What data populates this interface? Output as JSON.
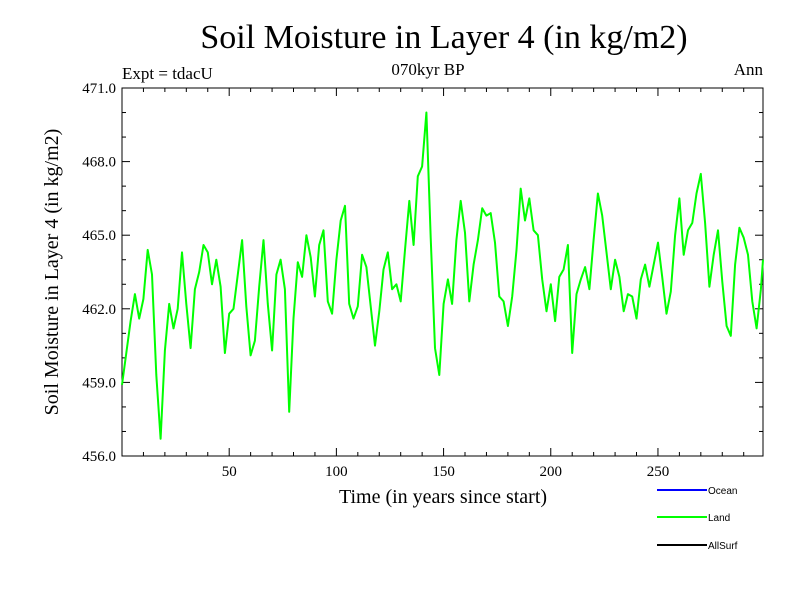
{
  "chart_data": {
    "type": "line",
    "title": "Soil Moisture in Layer 4 (in kg/m2)",
    "subtitle": "070kyr BP",
    "left_note": "Expt = tdacU",
    "right_note": "Ann",
    "xlabel": "Time (in years since start)",
    "ylabel": "Soil Moisture in Layer 4 (in kg/m2)",
    "xlim": [
      0,
      299
    ],
    "ylim": [
      456.0,
      471.0
    ],
    "x_ticks": [
      50,
      100,
      150,
      200,
      250
    ],
    "x_tick_labels": [
      "50",
      "100",
      "150",
      "200",
      "250"
    ],
    "y_ticks": [
      456.0,
      459.0,
      462.0,
      465.0,
      468.0,
      471.0
    ],
    "y_tick_labels": [
      "456.0",
      "459.0",
      "462.0",
      "465.0",
      "468.0",
      "471.0"
    ],
    "grid": false,
    "legend_position": "bottom-right",
    "legend": [
      {
        "name": "Ocean",
        "color": "#0000ff"
      },
      {
        "name": "Land",
        "color": "#00ff00"
      },
      {
        "name": "AllSurf",
        "color": "#000000"
      }
    ],
    "series": [
      {
        "name": "Land",
        "color": "#00ff00",
        "x": [
          0,
          2,
          4,
          6,
          8,
          10,
          12,
          14,
          16,
          18,
          20,
          22,
          24,
          26,
          28,
          30,
          32,
          34,
          36,
          38,
          40,
          42,
          44,
          46,
          48,
          50,
          52,
          54,
          56,
          58,
          60,
          62,
          64,
          66,
          68,
          70,
          72,
          74,
          76,
          78,
          80,
          82,
          84,
          86,
          88,
          90,
          92,
          94,
          96,
          98,
          100,
          102,
          104,
          106,
          108,
          110,
          112,
          114,
          116,
          118,
          120,
          122,
          124,
          126,
          128,
          130,
          132,
          134,
          136,
          138,
          140,
          142,
          144,
          146,
          148,
          150,
          152,
          154,
          156,
          158,
          160,
          162,
          164,
          166,
          168,
          170,
          172,
          174,
          176,
          178,
          180,
          182,
          184,
          186,
          188,
          190,
          192,
          194,
          196,
          198,
          200,
          202,
          204,
          206,
          208,
          210,
          212,
          214,
          216,
          218,
          220,
          222,
          224,
          226,
          228,
          230,
          232,
          234,
          236,
          238,
          240,
          242,
          244,
          246,
          248,
          250,
          252,
          254,
          256,
          258,
          260,
          262,
          264,
          266,
          268,
          270,
          272,
          274,
          276,
          278,
          280,
          282,
          284,
          286,
          288,
          290,
          292,
          294,
          296,
          298,
          299
        ],
        "values": [
          458.9,
          460.2,
          461.5,
          462.6,
          461.6,
          462.4,
          464.4,
          463.4,
          459.3,
          456.7,
          460.3,
          462.2,
          461.2,
          462.0,
          464.3,
          462.2,
          460.4,
          462.8,
          463.5,
          464.6,
          464.3,
          463.0,
          464.0,
          462.9,
          460.2,
          461.8,
          462.0,
          463.4,
          464.8,
          462.1,
          460.1,
          460.7,
          462.9,
          464.8,
          462.2,
          460.3,
          463.4,
          464.0,
          462.8,
          457.8,
          461.6,
          463.9,
          463.3,
          465.0,
          464.1,
          462.5,
          464.6,
          465.2,
          462.3,
          461.8,
          464.0,
          465.6,
          466.2,
          462.2,
          461.6,
          462.1,
          464.2,
          463.7,
          462.1,
          460.5,
          461.9,
          463.6,
          464.3,
          462.8,
          463.0,
          462.3,
          464.4,
          466.4,
          464.6,
          467.4,
          467.8,
          470.0,
          464.9,
          460.4,
          459.3,
          462.2,
          463.2,
          462.2,
          464.8,
          466.4,
          465.1,
          462.3,
          463.8,
          464.8,
          466.1,
          465.8,
          465.9,
          464.7,
          462.5,
          462.3,
          461.3,
          462.5,
          464.4,
          466.9,
          465.6,
          466.5,
          465.2,
          465.0,
          463.2,
          461.9,
          463.0,
          461.5,
          463.3,
          463.6,
          464.6,
          460.2,
          462.6,
          463.2,
          463.7,
          462.8,
          464.8,
          466.7,
          465.8,
          464.3,
          462.8,
          464.0,
          463.3,
          461.9,
          462.6,
          462.5,
          461.6,
          463.2,
          463.8,
          462.9,
          463.8,
          464.7,
          463.3,
          461.8,
          462.7,
          465.0,
          466.5,
          464.2,
          465.2,
          465.5,
          466.7,
          467.5,
          465.5,
          462.9,
          464.2,
          465.2,
          463.1,
          461.3,
          460.9,
          463.8,
          465.3,
          464.9,
          464.2,
          462.3,
          461.2,
          462.8,
          464.0
        ]
      }
    ]
  }
}
